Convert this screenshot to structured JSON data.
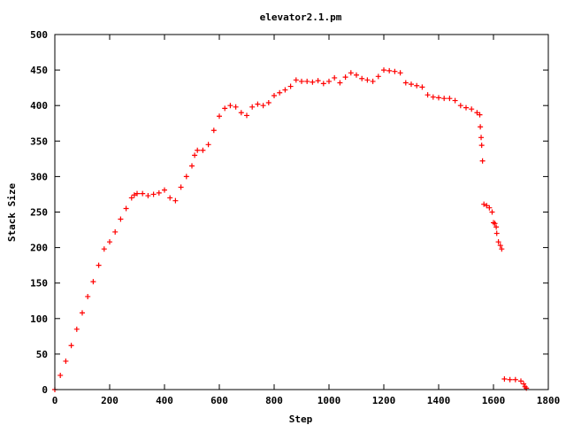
{
  "chart_data": {
    "type": "scatter",
    "title": "elevator2.1.pm",
    "xlabel": "Step",
    "ylabel": "Stack Size",
    "xlim": [
      0,
      1800
    ],
    "ylim": [
      0,
      500
    ],
    "x_ticks": [
      0,
      200,
      400,
      600,
      800,
      1000,
      1200,
      1400,
      1600,
      1800
    ],
    "y_ticks": [
      0,
      50,
      100,
      150,
      200,
      250,
      300,
      350,
      400,
      450,
      500
    ],
    "grid": false,
    "legend": "none",
    "marker": "+",
    "series": [
      {
        "color": "#ff0000",
        "points": [
          [
            0,
            0
          ],
          [
            20,
            20
          ],
          [
            40,
            40
          ],
          [
            60,
            62
          ],
          [
            80,
            85
          ],
          [
            100,
            108
          ],
          [
            120,
            131
          ],
          [
            140,
            152
          ],
          [
            160,
            175
          ],
          [
            180,
            198
          ],
          [
            200,
            208
          ],
          [
            220,
            222
          ],
          [
            240,
            240
          ],
          [
            260,
            255
          ],
          [
            280,
            270
          ],
          [
            290,
            274
          ],
          [
            300,
            276
          ],
          [
            320,
            276
          ],
          [
            340,
            273
          ],
          [
            360,
            275
          ],
          [
            380,
            277
          ],
          [
            400,
            281
          ],
          [
            420,
            270
          ],
          [
            440,
            266
          ],
          [
            460,
            285
          ],
          [
            480,
            300
          ],
          [
            500,
            315
          ],
          [
            510,
            330
          ],
          [
            520,
            337
          ],
          [
            540,
            337
          ],
          [
            560,
            345
          ],
          [
            580,
            365
          ],
          [
            600,
            385
          ],
          [
            620,
            396
          ],
          [
            640,
            400
          ],
          [
            660,
            398
          ],
          [
            680,
            390
          ],
          [
            700,
            386
          ],
          [
            720,
            398
          ],
          [
            740,
            402
          ],
          [
            760,
            400
          ],
          [
            780,
            404
          ],
          [
            800,
            414
          ],
          [
            820,
            418
          ],
          [
            840,
            422
          ],
          [
            860,
            427
          ],
          [
            880,
            436
          ],
          [
            900,
            434
          ],
          [
            920,
            434
          ],
          [
            940,
            433
          ],
          [
            960,
            435
          ],
          [
            980,
            431
          ],
          [
            1000,
            434
          ],
          [
            1020,
            439
          ],
          [
            1040,
            432
          ],
          [
            1060,
            440
          ],
          [
            1080,
            446
          ],
          [
            1100,
            443
          ],
          [
            1120,
            438
          ],
          [
            1140,
            436
          ],
          [
            1160,
            434
          ],
          [
            1180,
            441
          ],
          [
            1200,
            450
          ],
          [
            1220,
            449
          ],
          [
            1240,
            448
          ],
          [
            1260,
            446
          ],
          [
            1280,
            432
          ],
          [
            1300,
            430
          ],
          [
            1320,
            428
          ],
          [
            1340,
            426
          ],
          [
            1360,
            415
          ],
          [
            1380,
            412
          ],
          [
            1400,
            411
          ],
          [
            1420,
            410
          ],
          [
            1440,
            410
          ],
          [
            1460,
            407
          ],
          [
            1480,
            400
          ],
          [
            1500,
            397
          ],
          [
            1520,
            395
          ],
          [
            1540,
            390
          ],
          [
            1550,
            387
          ],
          [
            1552,
            370
          ],
          [
            1555,
            355
          ],
          [
            1557,
            344
          ],
          [
            1560,
            322
          ],
          [
            1565,
            261
          ],
          [
            1575,
            259
          ],
          [
            1585,
            256
          ],
          [
            1595,
            250
          ],
          [
            1600,
            235
          ],
          [
            1605,
            234
          ],
          [
            1610,
            229
          ],
          [
            1612,
            220
          ],
          [
            1618,
            208
          ],
          [
            1625,
            203
          ],
          [
            1630,
            198
          ],
          [
            1640,
            15
          ],
          [
            1660,
            14
          ],
          [
            1680,
            14
          ],
          [
            1700,
            12
          ],
          [
            1710,
            8
          ],
          [
            1715,
            4
          ],
          [
            1720,
            2
          ]
        ]
      }
    ]
  }
}
